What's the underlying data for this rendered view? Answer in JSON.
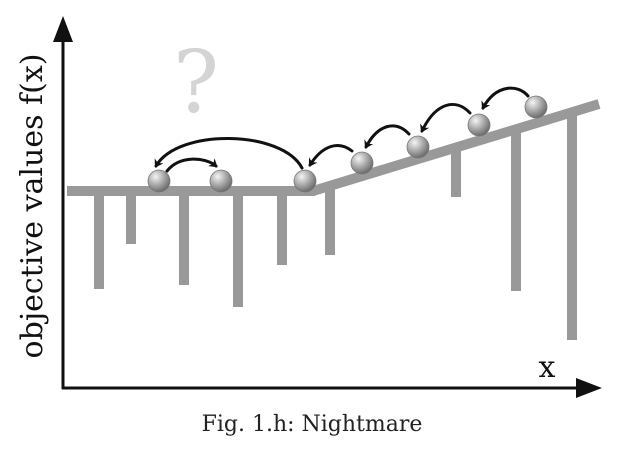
{
  "axes": {
    "y_label": "objective values f(x)",
    "x_label": "x"
  },
  "question_mark": "?",
  "caption": "Fig. 1.h: Nightmare",
  "colors": {
    "landscape": "#999999",
    "axis": "#111111",
    "arrow": "#111111",
    "question": "#d4d4d4"
  }
}
